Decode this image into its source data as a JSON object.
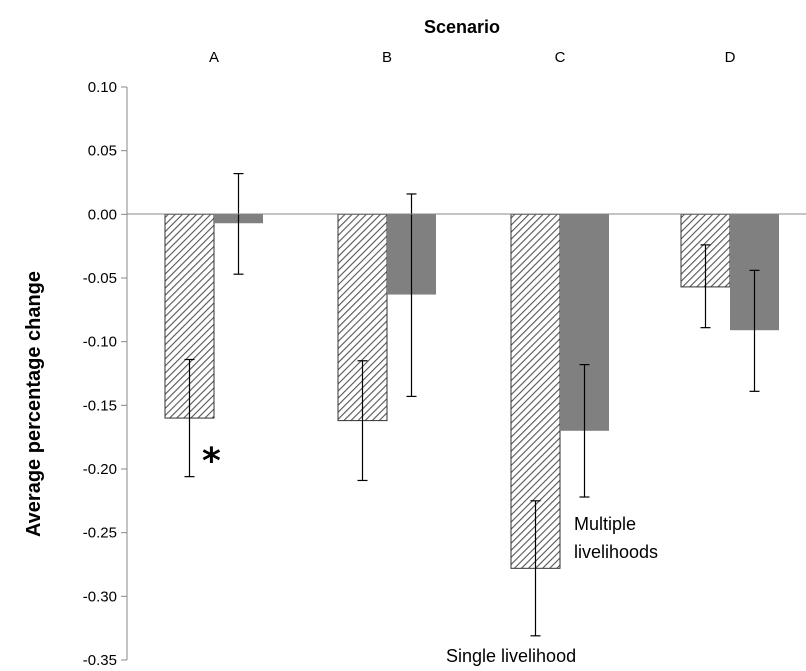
{
  "chart_data": {
    "type": "bar",
    "title": "Scenario",
    "ylabel": "Average percentage change",
    "xlabel": "",
    "categories": [
      "A",
      "B",
      "C",
      "D"
    ],
    "ylim": [
      -0.35,
      0.1
    ],
    "yticks": [
      "0.10",
      "0.05",
      "0.00",
      "-0.05",
      "-0.10",
      "-0.15",
      "-0.20",
      "-0.25",
      "-0.30",
      "-0.35"
    ],
    "category_axis_position": "top",
    "grid": false,
    "series": [
      {
        "style": "hatched",
        "color": "#ffffff",
        "values": [
          -0.16,
          -0.162,
          -0.278,
          -0.057
        ],
        "error_low": [
          -0.206,
          -0.209,
          -0.331,
          -0.089
        ],
        "error_high": [
          -0.114,
          -0.115,
          -0.225,
          -0.024
        ]
      },
      {
        "style": "solid",
        "color": "#808080",
        "values": [
          -0.007,
          -0.063,
          -0.17,
          -0.091
        ],
        "error_low": [
          -0.047,
          -0.143,
          -0.222,
          -0.139
        ],
        "error_high": [
          0.032,
          0.016,
          -0.118,
          -0.044
        ]
      }
    ],
    "annotations": {
      "single": "Single livelihood",
      "multiple_line1": "Multiple",
      "multiple_line2": "livelihoods",
      "significance": "*"
    }
  }
}
